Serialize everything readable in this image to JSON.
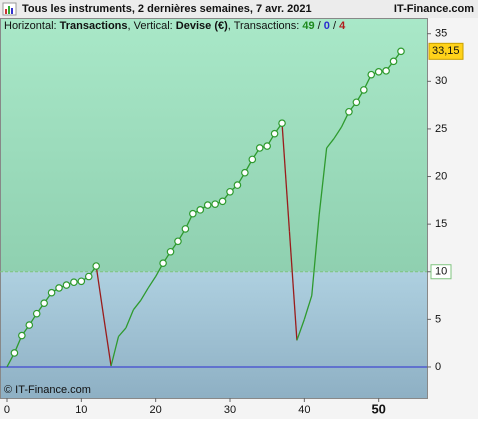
{
  "header": {
    "title": "Tous les instruments, 2 dernières semaines, 7 avr. 2021",
    "site": "IT-Finance.com"
  },
  "info": {
    "h_label": "Horizontal: ",
    "h_value": "Transactions",
    "v_label": ", Vertical: ",
    "v_value": "Devise (€)",
    "t_label": ", Transactions: ",
    "wins": "49",
    "sep1": " / ",
    "neutral": "0",
    "sep2": " / ",
    "losses": "4"
  },
  "copyright": "© IT-Finance.com",
  "chart_data": {
    "type": "line",
    "x": [
      0,
      1,
      2,
      3,
      4,
      5,
      6,
      7,
      8,
      9,
      10,
      11,
      12,
      13,
      14,
      15,
      16,
      17,
      18,
      19,
      20,
      21,
      22,
      23,
      24,
      25,
      26,
      27,
      28,
      29,
      30,
      31,
      32,
      33,
      34,
      35,
      36,
      37,
      38,
      39,
      40,
      41,
      42,
      43,
      44,
      45,
      46,
      47,
      48,
      49,
      50,
      51,
      52,
      53
    ],
    "values": [
      0,
      1.47,
      3.3,
      4.4,
      5.6,
      6.7,
      7.8,
      8.3,
      8.6,
      8.9,
      9.0,
      9.5,
      10.6,
      5.3,
      0.1,
      3.2,
      4.1,
      6.0,
      7.0,
      8.3,
      9.5,
      10.9,
      12.1,
      13.2,
      14.5,
      16.1,
      16.5,
      17.0,
      17.1,
      17.4,
      18.4,
      19.1,
      20.4,
      21.8,
      23.0,
      23.2,
      24.5,
      25.6,
      14.2,
      2.8,
      5.0,
      7.5,
      16.0,
      23.0,
      24.0,
      25.2,
      26.8,
      27.8,
      29.1,
      30.7,
      31.0,
      31.1,
      32.1,
      33.15
    ],
    "end_label": "33,15",
    "up_color": "#2e9a2e",
    "down_color": "#9a1c1c",
    "zero_color": "#2b2bd0",
    "threshold": 10,
    "xlim": [
      -0.94,
      56.5
    ],
    "ylim": [
      -3.26,
      36.23
    ],
    "xticks": [
      0,
      10,
      20,
      30,
      40,
      50
    ],
    "yticks": [
      0,
      5,
      10,
      15,
      20,
      25,
      30,
      35
    ]
  }
}
